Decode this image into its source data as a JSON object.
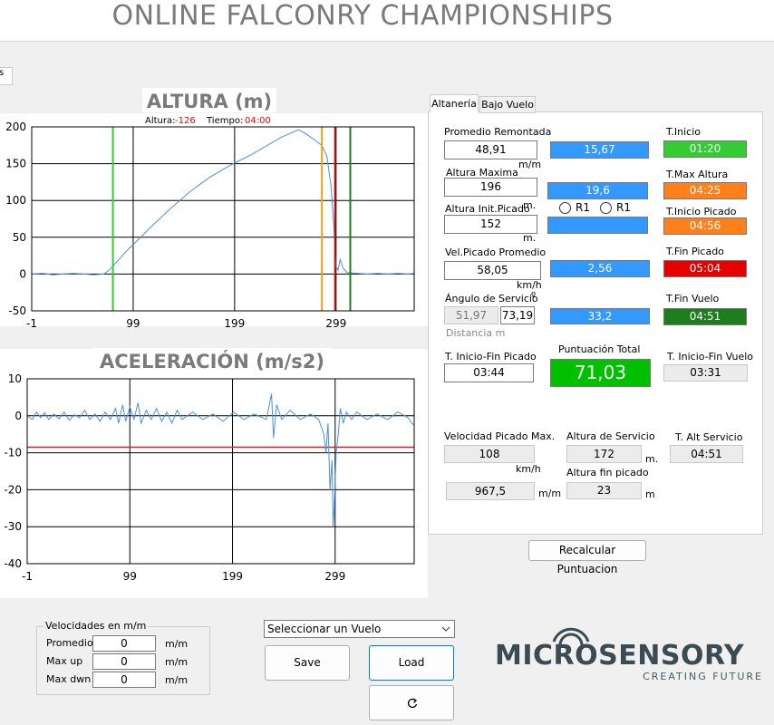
{
  "header": {
    "title": "ONLINE FALCONRY CHAMPIONSHIPS",
    "tab_stub": "s"
  },
  "chart_data": [
    {
      "type": "line",
      "title": "ALTURA (m)",
      "annotation": {
        "altura_label": "Altura:",
        "altura": "-126",
        "tiempo_label": "Tiempo:",
        "tiempo": "04:00"
      },
      "xlim": [
        -1,
        376
      ],
      "ylim": [
        -50,
        200
      ],
      "xticks": [
        -1,
        99,
        199,
        299
      ],
      "yticks": [
        -50,
        0,
        50,
        100,
        150,
        200
      ],
      "grid": true,
      "series": [
        {
          "color": "#4a90e2",
          "x": [
            -1,
            10,
            20,
            30,
            40,
            50,
            60,
            70,
            75,
            85,
            95,
            105,
            115,
            125,
            135,
            145,
            155,
            165,
            175,
            185,
            195,
            205,
            215,
            225,
            235,
            245,
            255,
            262,
            270,
            278,
            285,
            290,
            294,
            297,
            299,
            301,
            303,
            306,
            310,
            320,
            330,
            340,
            350,
            360,
            370,
            376
          ],
          "values": [
            0,
            1,
            -1,
            0,
            1,
            0,
            -1,
            0,
            5,
            20,
            35,
            48,
            62,
            75,
            88,
            100,
            112,
            122,
            132,
            140,
            148,
            155,
            162,
            170,
            178,
            186,
            192,
            196,
            190,
            182,
            175,
            160,
            120,
            60,
            10,
            5,
            20,
            8,
            2,
            1,
            0,
            1,
            0,
            1,
            0,
            1
          ]
        }
      ],
      "vlines": [
        {
          "x": 79,
          "color": "#33cc33"
        },
        {
          "x": 285,
          "color": "#f0a020"
        },
        {
          "x": 298,
          "color": "#d01010"
        },
        {
          "x": 313,
          "color": "#1e7e1e"
        }
      ]
    },
    {
      "type": "line",
      "title": "ACELERACIÓN (m/s2)",
      "xlim": [
        -1,
        376
      ],
      "ylim": [
        -40,
        10
      ],
      "xticks": [
        -1,
        99,
        199,
        299
      ],
      "yticks": [
        -40,
        -30,
        -20,
        -10,
        0,
        10
      ],
      "grid": true,
      "series": [
        {
          "color": "#4a90e2",
          "x": [
            -1,
            4,
            8,
            12,
            16,
            20,
            25,
            30,
            35,
            40,
            45,
            50,
            55,
            60,
            65,
            70,
            75,
            80,
            85,
            88,
            92,
            95,
            99,
            103,
            107,
            110,
            115,
            120,
            125,
            130,
            135,
            140,
            145,
            150,
            160,
            170,
            180,
            190,
            200,
            210,
            220,
            232,
            237,
            239,
            242,
            247,
            255,
            265,
            275,
            283,
            288,
            290,
            292,
            294,
            296,
            297,
            298,
            300,
            302,
            304,
            307,
            310,
            315,
            320,
            330,
            340,
            350,
            360,
            370,
            375
          ],
          "values": [
            0,
            -1,
            1,
            -0.5,
            0.8,
            -1,
            0.5,
            -0.8,
            1,
            -1.2,
            0.3,
            -0.5,
            1.5,
            -1,
            0.5,
            -1.5,
            1,
            -1,
            2,
            -2,
            3,
            -1.5,
            2.5,
            -1,
            3.5,
            -2,
            1.5,
            -1,
            2,
            -1.5,
            1,
            -2,
            1.5,
            -1,
            1,
            -1,
            0.5,
            -1.5,
            1,
            -1,
            0.5,
            -1,
            6,
            -6,
            3,
            -1,
            1.5,
            -1,
            0.5,
            -1,
            -5,
            -10,
            -2,
            -20,
            -12,
            -30,
            -25,
            -10,
            -5,
            2,
            -2,
            1,
            -1,
            1,
            -1,
            0.5,
            -1,
            1,
            -0.5,
            -2.5
          ]
        }
      ],
      "hlines": [
        {
          "y": -8.5,
          "color": "#e02020"
        }
      ]
    }
  ],
  "panel": {
    "tabs": [
      "Altanería",
      "Bajo Vuelo"
    ],
    "promedio_remontada": {
      "label": "Promedio Remontada",
      "value": "48,91",
      "unit": "m/m",
      "score": "15,67"
    },
    "altura_maxima": {
      "label": "Altura Maxima",
      "value": "196",
      "unit": "m.",
      "score": "19,6"
    },
    "altura_init_picado": {
      "label": "Altura Init.Picado",
      "value": "152",
      "unit": "m.",
      "radio_1": "R1",
      "radio_2": "R1"
    },
    "vel_picado": {
      "label": "Vel.Picado Promedio",
      "value": "58,05",
      "unit": "km/h",
      "score": "2,56"
    },
    "angulo": {
      "label": "Ángulo de Servicio",
      "degree": "º",
      "value_1": "51,97",
      "value_2": "73,19",
      "distance": "Distancia m",
      "score": "33,2"
    },
    "times": [
      {
        "label": "T.Inicio",
        "value": "01:20",
        "color": "#33cc33"
      },
      {
        "label": "T.Max Altura",
        "value": "04:25",
        "color": "#ff7f1a"
      },
      {
        "label": "T.Inicio Picado",
        "value": "04:56",
        "color": "#ff7f1a"
      },
      {
        "label": "T.Fin Picado",
        "value": "05:04",
        "color": "#e60000"
      },
      {
        "label": "T.Fin Vuelo",
        "value": "04:51",
        "color": "#1e7e1e"
      }
    ],
    "inicio_fin_picado": {
      "label": "T. Inicio-Fin Picado",
      "value": "03:44"
    },
    "puntuacion": {
      "label": "Puntuación Total",
      "value": "71,03"
    },
    "inicio_fin_vuelo": {
      "label": "T. Inicio-Fin Vuelo",
      "value": "03:31"
    },
    "vel_max": {
      "label": "Velocidad Picado Max.",
      "value": "108",
      "unit": "km/h",
      "value_2": "967,5",
      "unit_2": "m/m"
    },
    "altura_servicio": {
      "label": "Altura de Servicio",
      "value": "172",
      "unit": "m."
    },
    "altura_fin": {
      "label": "Altura fin picado",
      "value": "23",
      "unit": "m"
    },
    "alt_servicio_t": {
      "label": "T. Alt Servicio",
      "value": "04:51"
    },
    "recalcular": "Recalcular Puntuacion"
  },
  "velocidades": {
    "title": "Velocidades en m/m",
    "rows": [
      {
        "label": "Promedio",
        "value": "0",
        "unit": "m/m"
      },
      {
        "label": "Max up",
        "value": "0",
        "unit": "m/m"
      },
      {
        "label": "Max dwn",
        "value": "0",
        "unit": "m/m"
      }
    ]
  },
  "controls": {
    "select": "Seleccionar un Vuelo",
    "save": "Save",
    "load": "Load"
  },
  "logo": {
    "name": "MICROSENSORY",
    "tagline": "CREATING FUTURE"
  }
}
